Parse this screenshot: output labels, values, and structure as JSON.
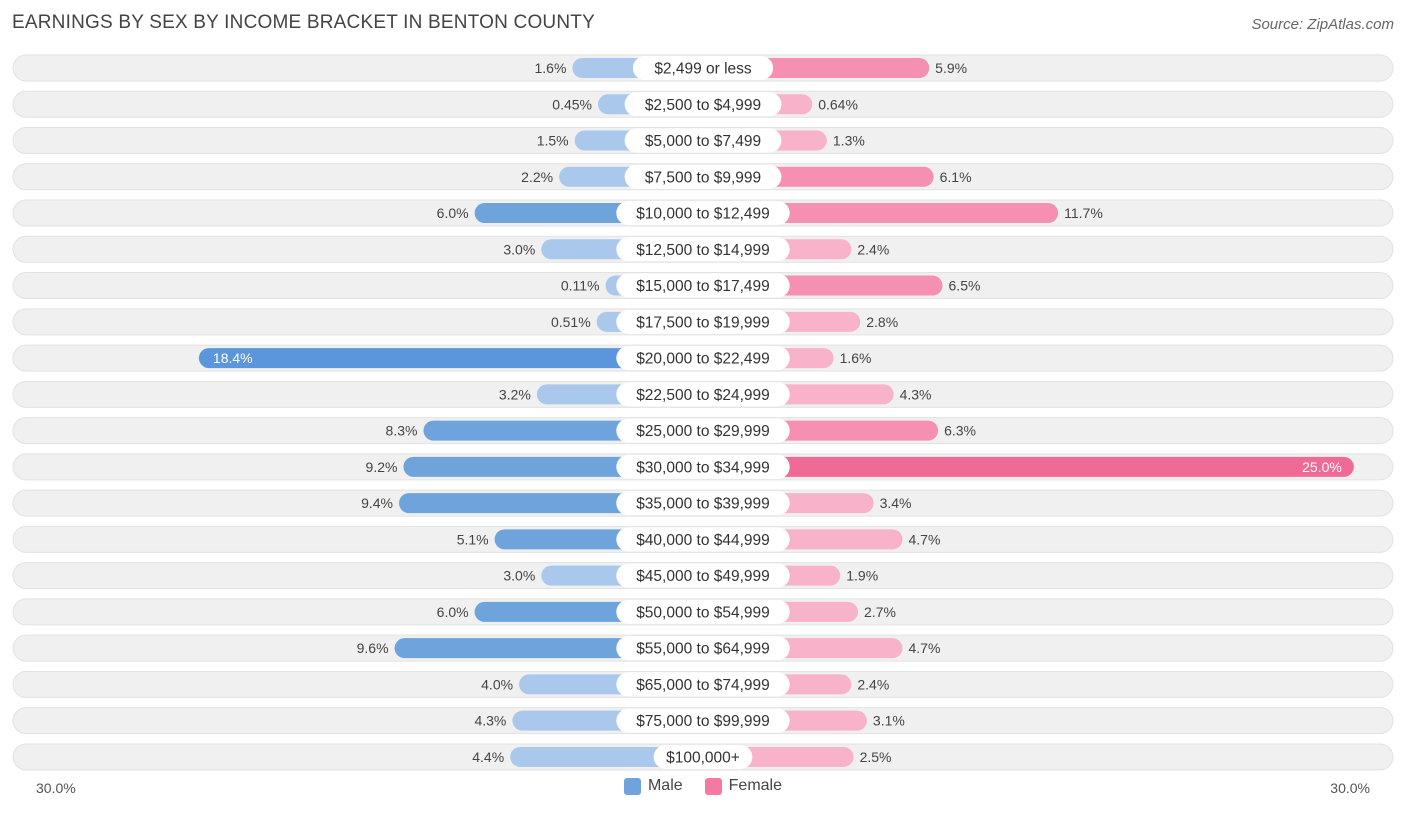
{
  "title": "EARNINGS BY SEX BY INCOME BRACKET IN BENTON COUNTY",
  "source": "Source: ZipAtlas.com",
  "legend": {
    "male": "Male",
    "female": "Female"
  },
  "axis": {
    "left_label": "30.0%",
    "right_label": "30.0%"
  },
  "colors": {
    "male": "#6fa3dc",
    "male_light": "#a9c8ec",
    "male_strong": "#5b96dc",
    "female": "#f590b2",
    "female_light": "#f8b3ca",
    "female_strong": "#f06a96"
  },
  "chart_data": {
    "type": "bar",
    "orientation": "horizontal-diverging",
    "title": "EARNINGS BY SEX BY INCOME BRACKET IN BENTON COUNTY",
    "xlim": [
      -30.0,
      30.0
    ],
    "unit": "%",
    "categories": [
      "$2,499 or less",
      "$2,500 to $4,999",
      "$5,000 to $7,499",
      "$7,500 to $9,999",
      "$10,000 to $12,499",
      "$12,500 to $14,999",
      "$15,000 to $17,499",
      "$17,500 to $19,999",
      "$20,000 to $22,499",
      "$22,500 to $24,999",
      "$25,000 to $29,999",
      "$30,000 to $34,999",
      "$35,000 to $39,999",
      "$40,000 to $44,999",
      "$45,000 to $49,999",
      "$50,000 to $54,999",
      "$55,000 to $64,999",
      "$65,000 to $74,999",
      "$75,000 to $99,999",
      "$100,000+"
    ],
    "series": [
      {
        "name": "Male",
        "values": [
          1.6,
          0.45,
          1.5,
          2.2,
          6.0,
          3.0,
          0.11,
          0.51,
          18.4,
          3.2,
          8.3,
          9.2,
          9.4,
          5.1,
          3.0,
          6.0,
          9.6,
          4.0,
          4.3,
          4.4
        ],
        "labels": [
          "1.6%",
          "0.45%",
          "1.5%",
          "2.2%",
          "6.0%",
          "3.0%",
          "0.11%",
          "0.51%",
          "18.4%",
          "3.2%",
          "8.3%",
          "9.2%",
          "9.4%",
          "5.1%",
          "3.0%",
          "6.0%",
          "9.6%",
          "4.0%",
          "4.3%",
          "4.4%"
        ]
      },
      {
        "name": "Female",
        "values": [
          5.9,
          0.64,
          1.3,
          6.1,
          11.7,
          2.4,
          6.5,
          2.8,
          1.6,
          4.3,
          6.3,
          25.0,
          3.4,
          4.7,
          1.9,
          2.7,
          4.7,
          2.4,
          3.1,
          2.5
        ],
        "labels": [
          "5.9%",
          "0.64%",
          "1.3%",
          "6.1%",
          "11.7%",
          "2.4%",
          "6.5%",
          "2.8%",
          "1.6%",
          "4.3%",
          "6.3%",
          "25.0%",
          "3.4%",
          "4.7%",
          "1.9%",
          "2.7%",
          "4.7%",
          "2.4%",
          "3.1%",
          "2.5%"
        ]
      }
    ]
  }
}
